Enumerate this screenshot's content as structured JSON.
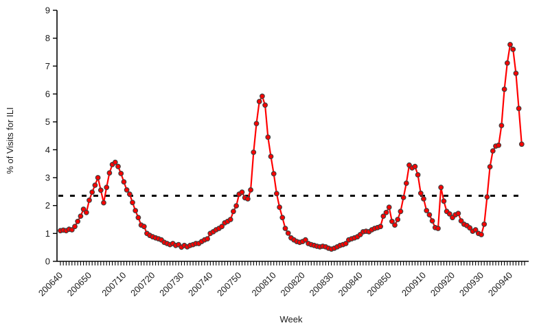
{
  "chart_data": {
    "type": "line",
    "title": "",
    "xlabel": "Week",
    "ylabel": "% of Visits for ILI",
    "ylim": [
      0,
      9
    ],
    "y_ticks": [
      0,
      1,
      2,
      3,
      4,
      5,
      6,
      7,
      8,
      9
    ],
    "x_tick_labels": [
      "200640",
      "200650",
      "200710",
      "200720",
      "200730",
      "200740",
      "200750",
      "200810",
      "200820",
      "200830",
      "200840",
      "200850",
      "200910",
      "200920",
      "200930",
      "200940"
    ],
    "grid": false,
    "legend": "none",
    "baseline": {
      "value": 2.35,
      "style": "dashed",
      "color": "#000000"
    },
    "colors": {
      "line": "#ff0000",
      "marker_fill": "#ff0000",
      "marker_edge": "#3f3f3f",
      "axis": "#000000",
      "text": "#1a1a1a"
    },
    "series": [
      {
        "name": "% of Visits for ILI",
        "marker": "circle",
        "x": [
          "200640",
          "200641",
          "200642",
          "200643",
          "200644",
          "200645",
          "200646",
          "200647",
          "200648",
          "200649",
          "200650",
          "200651",
          "200652",
          "200701",
          "200702",
          "200703",
          "200704",
          "200705",
          "200706",
          "200707",
          "200708",
          "200709",
          "200710",
          "200711",
          "200712",
          "200713",
          "200714",
          "200715",
          "200716",
          "200717",
          "200718",
          "200719",
          "200720",
          "200721",
          "200722",
          "200723",
          "200724",
          "200725",
          "200726",
          "200727",
          "200728",
          "200729",
          "200730",
          "200731",
          "200732",
          "200733",
          "200734",
          "200735",
          "200736",
          "200737",
          "200738",
          "200739",
          "200740",
          "200741",
          "200742",
          "200743",
          "200744",
          "200745",
          "200746",
          "200747",
          "200748",
          "200749",
          "200750",
          "200751",
          "200752",
          "200801",
          "200802",
          "200803",
          "200804",
          "200805",
          "200806",
          "200807",
          "200808",
          "200809",
          "200810",
          "200811",
          "200812",
          "200813",
          "200814",
          "200815",
          "200816",
          "200817",
          "200818",
          "200819",
          "200820",
          "200821",
          "200822",
          "200823",
          "200824",
          "200825",
          "200826",
          "200827",
          "200828",
          "200829",
          "200830",
          "200831",
          "200832",
          "200833",
          "200834",
          "200835",
          "200836",
          "200837",
          "200838",
          "200839",
          "200840",
          "200841",
          "200842",
          "200843",
          "200844",
          "200845",
          "200846",
          "200847",
          "200848",
          "200849",
          "200850",
          "200851",
          "200852",
          "200901",
          "200902",
          "200903",
          "200904",
          "200905",
          "200906",
          "200907",
          "200908",
          "200909",
          "200910",
          "200911",
          "200912",
          "200913",
          "200914",
          "200915",
          "200916",
          "200917",
          "200918",
          "200919",
          "200920",
          "200921",
          "200922",
          "200923",
          "200924",
          "200925",
          "200926",
          "200927",
          "200928",
          "200929",
          "200930",
          "200931",
          "200932",
          "200933",
          "200934",
          "200935",
          "200936",
          "200937",
          "200938",
          "200939",
          "200940",
          "200941",
          "200942",
          "200943",
          "200944"
        ],
        "values": [
          1.1,
          1.12,
          1.1,
          1.15,
          1.13,
          1.25,
          1.43,
          1.62,
          1.87,
          1.75,
          2.19,
          2.48,
          2.73,
          3.0,
          2.55,
          2.1,
          2.65,
          3.17,
          3.47,
          3.55,
          3.4,
          3.15,
          2.85,
          2.56,
          2.41,
          2.11,
          1.82,
          1.57,
          1.3,
          1.25,
          1.0,
          0.93,
          0.88,
          0.84,
          0.81,
          0.77,
          0.68,
          0.64,
          0.6,
          0.64,
          0.57,
          0.6,
          0.51,
          0.57,
          0.52,
          0.57,
          0.6,
          0.64,
          0.64,
          0.71,
          0.77,
          0.81,
          1.0,
          1.06,
          1.13,
          1.18,
          1.25,
          1.38,
          1.43,
          1.5,
          1.79,
          1.99,
          2.41,
          2.48,
          2.28,
          2.24,
          2.56,
          3.91,
          4.94,
          5.73,
          5.92,
          5.6,
          4.45,
          3.76,
          3.14,
          2.43,
          1.94,
          1.57,
          1.18,
          1.01,
          0.84,
          0.77,
          0.71,
          0.68,
          0.71,
          0.77,
          0.64,
          0.6,
          0.57,
          0.54,
          0.52,
          0.54,
          0.52,
          0.47,
          0.44,
          0.47,
          0.52,
          0.57,
          0.6,
          0.64,
          0.77,
          0.81,
          0.84,
          0.88,
          0.96,
          1.06,
          1.08,
          1.06,
          1.13,
          1.18,
          1.21,
          1.25,
          1.62,
          1.75,
          1.94,
          1.43,
          1.3,
          1.5,
          1.79,
          2.29,
          2.8,
          3.45,
          3.35,
          3.4,
          3.1,
          2.44,
          2.24,
          1.82,
          1.67,
          1.45,
          1.21,
          1.18,
          2.65,
          2.16,
          1.79,
          1.7,
          1.57,
          1.67,
          1.72,
          1.45,
          1.33,
          1.28,
          1.2,
          1.08,
          1.13,
          1.0,
          0.96,
          1.33,
          2.31,
          3.39,
          3.96,
          4.13,
          4.16,
          4.87,
          6.17,
          7.11,
          7.77,
          7.6,
          6.74,
          5.48,
          4.2
        ]
      }
    ]
  }
}
